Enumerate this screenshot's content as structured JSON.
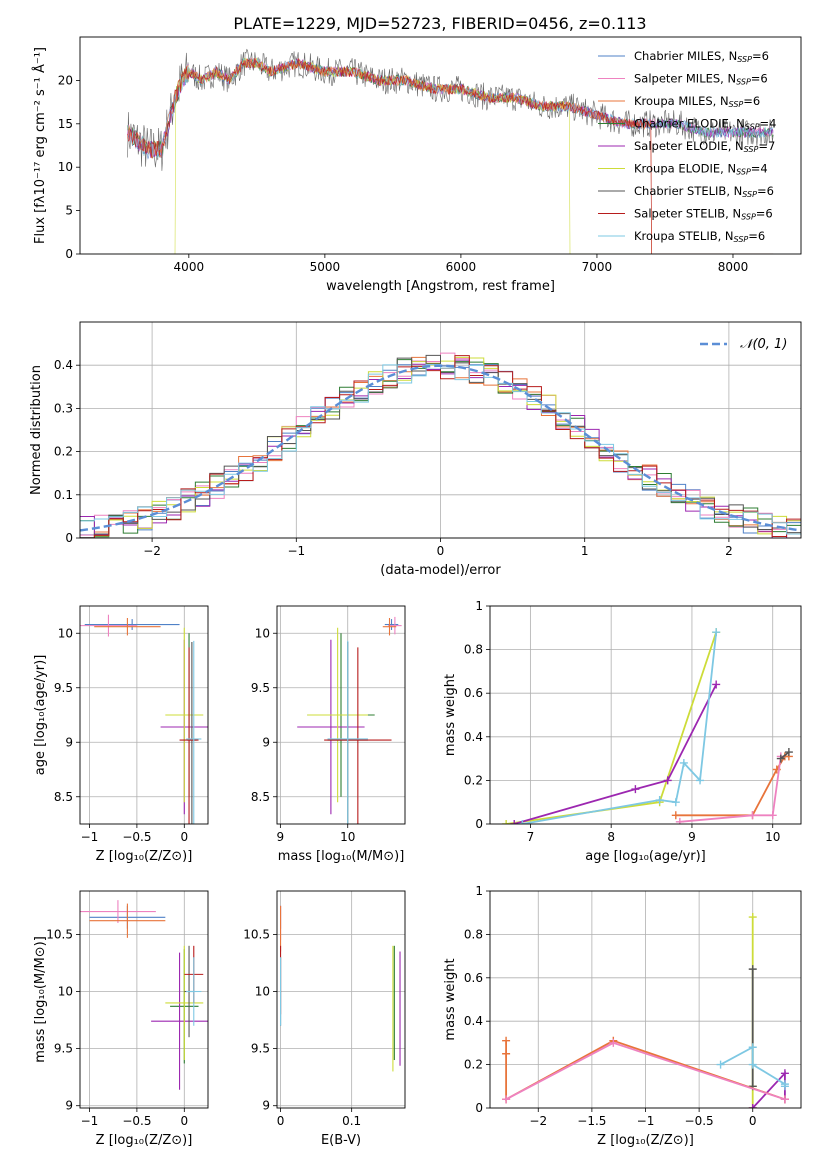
{
  "title": "PLATE=1229, MJD=52723, FIBERID=0456, z=0.113",
  "models": [
    {
      "name": "Chabrier MILES",
      "nssp": "6",
      "color": "#4f81c7"
    },
    {
      "name": "Salpeter MILES",
      "nssp": "6",
      "color": "#ee82c0"
    },
    {
      "name": "Kroupa MILES",
      "nssp": "6",
      "color": "#e8743b"
    },
    {
      "name": "Chabrier ELODIE",
      "nssp": "4",
      "color": "#2e7d32"
    },
    {
      "name": "Salpeter ELODIE",
      "nssp": "7",
      "color": "#9c27b0"
    },
    {
      "name": "Kroupa ELODIE",
      "nssp": "4",
      "color": "#cddc39"
    },
    {
      "name": "Chabrier STELIB",
      "nssp": "6",
      "color": "#555555"
    },
    {
      "name": "Salpeter STELIB",
      "nssp": "6",
      "color": "#b71c1c"
    },
    {
      "name": "Kroupa STELIB",
      "nssp": "6",
      "color": "#7ec8e3"
    }
  ],
  "nssp_prefix": "N",
  "nssp_sub": "SSP",
  "chart_data": [
    {
      "id": "spectrum",
      "type": "line",
      "xlabel": "wavelength [Angstrom, rest frame]",
      "ylabel": "Flux [fλ10⁻¹⁷ erg cm⁻² s⁻¹ Å⁻¹]",
      "xlim": [
        3200,
        8500
      ],
      "ylim": [
        0,
        25
      ],
      "xticks": [
        4000,
        5000,
        6000,
        7000,
        8000
      ],
      "yticks": [
        0,
        5,
        10,
        15,
        20
      ],
      "spectrum_x": [
        3550,
        3700,
        3800,
        3900,
        3950,
        4000,
        4100,
        4200,
        4300,
        4400,
        4500,
        4600,
        4800,
        5000,
        5200,
        5400,
        5600,
        5800,
        6000,
        6200,
        6400,
        6600,
        6800,
        7000,
        7200,
        7400,
        7600,
        7800,
        8000,
        8300
      ],
      "spectrum_y": [
        14,
        12,
        12,
        18,
        20,
        21,
        20,
        21,
        20,
        22,
        22,
        21,
        22,
        21,
        21,
        20,
        20,
        19,
        19,
        18,
        18,
        17,
        17,
        16,
        15,
        15,
        15,
        14,
        14,
        14
      ],
      "dropouts": [
        {
          "series": "Kroupa ELODIE",
          "x_from": 3900,
          "x_to": 6800
        },
        {
          "series": "Salpeter STELIB",
          "x_from": 3500,
          "x_to": 7400
        },
        {
          "series": "Kroupa MILES",
          "x_from": 3500,
          "x_to": 7400
        }
      ]
    },
    {
      "id": "residuals",
      "type": "line",
      "xlabel": "(data-model)/error",
      "ylabel": "Normed distribution",
      "xlim": [
        -2.5,
        2.5
      ],
      "ylim": [
        0,
        0.5
      ],
      "xticks": [
        -2,
        -1,
        0,
        1,
        2
      ],
      "yticks": [
        0.0,
        0.1,
        0.2,
        0.3,
        0.4
      ],
      "legend": "𝒩(0, 1)",
      "legend_position": "top-right",
      "reference_curve": "normal(0,1)",
      "bins": 50
    },
    {
      "id": "age-vs-Z",
      "type": "scatter",
      "xlabel": "Z [log₁₀(Z/Z⊙)]",
      "ylabel": "age  [log₁₀(age/yr)]",
      "xlim": [
        -1.1,
        0.25
      ],
      "ylim": [
        8.25,
        10.25
      ],
      "xticks": [
        -1.0,
        -0.5,
        0.0
      ],
      "yticks": [
        8.5,
        9.0,
        9.5,
        10.0
      ],
      "points": [
        {
          "series": "Chabrier MILES",
          "x": -0.55,
          "y": 10.08,
          "xerr": 0.5,
          "yerr": 0.05
        },
        {
          "series": "Salpeter MILES",
          "x": -0.8,
          "y": 10.07,
          "xerr": 0.3,
          "yerr": 0.1
        },
        {
          "series": "Kroupa MILES",
          "x": -0.6,
          "y": 10.06,
          "xerr": 0.35,
          "yerr": 0.08
        },
        {
          "series": "Chabrier ELODIE",
          "x": 0.05,
          "y": 9.25,
          "xerr": 0.12,
          "yerr": 0.75
        },
        {
          "series": "Salpeter ELODIE",
          "x": 0.0,
          "y": 9.14,
          "xerr": 0.25,
          "yerr": 0.8
        },
        {
          "series": "Kroupa ELODIE",
          "x": 0.0,
          "y": 9.25,
          "xerr": 0.2,
          "yerr": 0.8
        },
        {
          "series": "Chabrier STELIB",
          "x": 0.08,
          "y": 9.02,
          "xerr": 0.05,
          "yerr": 0.9
        },
        {
          "series": "Salpeter STELIB",
          "x": 0.05,
          "y": 9.02,
          "xerr": 0.1,
          "yerr": 0.85
        },
        {
          "series": "Kroupa STELIB",
          "x": 0.1,
          "y": 9.03,
          "xerr": 0.08,
          "yerr": 0.9
        }
      ]
    },
    {
      "id": "age-vs-mass",
      "type": "scatter",
      "xlabel": "mass [log₁₀(M/M⊙)]",
      "ylabel": "",
      "xlim": [
        8.95,
        10.85
      ],
      "ylim": [
        8.25,
        10.25
      ],
      "xticks": [
        9,
        10
      ],
      "yticks": [
        8.5,
        9.0,
        9.5,
        10.0
      ],
      "points": [
        {
          "series": "Chabrier MILES",
          "x": 10.65,
          "y": 10.08,
          "xerr": 0.1,
          "yerr": 0.05
        },
        {
          "series": "Salpeter MILES",
          "x": 10.7,
          "y": 10.07,
          "xerr": 0.1,
          "yerr": 0.08
        },
        {
          "series": "Kroupa MILES",
          "x": 10.62,
          "y": 10.06,
          "xerr": 0.1,
          "yerr": 0.08
        },
        {
          "series": "Chabrier ELODIE",
          "x": 9.9,
          "y": 9.25,
          "xerr": 0.5,
          "yerr": 0.75
        },
        {
          "series": "Salpeter ELODIE",
          "x": 9.75,
          "y": 9.14,
          "xerr": 0.5,
          "yerr": 0.8
        },
        {
          "series": "Kroupa ELODIE",
          "x": 9.85,
          "y": 9.25,
          "xerr": 0.45,
          "yerr": 0.8
        },
        {
          "series": "Chabrier STELIB",
          "x": 10.0,
          "y": 9.02,
          "xerr": 0.3,
          "yerr": 0.9
        },
        {
          "series": "Salpeter STELIB",
          "x": 10.15,
          "y": 9.02,
          "xerr": 0.5,
          "yerr": 0.85
        },
        {
          "series": "Kroupa STELIB",
          "x": 10.0,
          "y": 9.03,
          "xerr": 0.3,
          "yerr": 0.9
        }
      ]
    },
    {
      "id": "weight-vs-age",
      "type": "line",
      "xlabel": "age  [log₁₀(age/yr)]",
      "ylabel": "mass weight",
      "xlim": [
        6.5,
        10.35
      ],
      "ylim": [
        0,
        1
      ],
      "xticks": [
        7,
        8,
        9,
        10
      ],
      "yticks": [
        0.0,
        0.2,
        0.4,
        0.6,
        0.8,
        1.0
      ],
      "series": [
        {
          "name": "Kroupa ELODIE",
          "x": [
            6.7,
            8.6,
            9.3
          ],
          "y": [
            0.0,
            0.1,
            0.88
          ]
        },
        {
          "name": "Salpeter ELODIE",
          "x": [
            6.8,
            8.3,
            8.7,
            9.3
          ],
          "y": [
            0.0,
            0.16,
            0.2,
            0.64
          ]
        },
        {
          "name": "Kroupa STELIB",
          "x": [
            6.9,
            8.6,
            8.8,
            8.9,
            9.1,
            9.3
          ],
          "y": [
            0.0,
            0.11,
            0.1,
            0.28,
            0.2,
            0.88
          ]
        },
        {
          "name": "Kroupa MILES",
          "x": [
            8.8,
            9.75,
            10.05,
            10.15,
            10.2
          ],
          "y": [
            0.04,
            0.04,
            0.25,
            0.31,
            0.31
          ]
        },
        {
          "name": "Salpeter MILES",
          "x": [
            8.85,
            9.75,
            10.0,
            10.1
          ],
          "y": [
            0.01,
            0.04,
            0.04,
            0.31
          ]
        },
        {
          "name": "Chabrier STELIB",
          "x": [
            10.1,
            10.2
          ],
          "y": [
            0.3,
            0.33
          ]
        }
      ]
    },
    {
      "id": "mass-vs-Z",
      "type": "scatter",
      "xlabel": "Z [log₁₀(Z/Z⊙)]",
      "ylabel": "mass [log₁₀(M/M⊙)]",
      "xlim": [
        -1.1,
        0.25
      ],
      "ylim": [
        8.98,
        10.88
      ],
      "xticks": [
        -1.0,
        -0.5,
        0.0
      ],
      "yticks": [
        9.0,
        9.5,
        10.0,
        10.5
      ],
      "points": [
        {
          "series": "Chabrier MILES",
          "x": -0.6,
          "y": 10.65,
          "xerr": 0.4,
          "yerr": 0.1
        },
        {
          "series": "Salpeter MILES",
          "x": -0.7,
          "y": 10.7,
          "xerr": 0.4,
          "yerr": 0.1
        },
        {
          "series": "Kroupa MILES",
          "x": -0.6,
          "y": 10.62,
          "xerr": 0.4,
          "yerr": 0.15
        },
        {
          "series": "Chabrier ELODIE",
          "x": 0.0,
          "y": 9.87,
          "xerr": 0.15,
          "yerr": 0.5
        },
        {
          "series": "Salpeter ELODIE",
          "x": -0.05,
          "y": 9.74,
          "xerr": 0.3,
          "yerr": 0.6
        },
        {
          "series": "Kroupa ELODIE",
          "x": 0.0,
          "y": 9.9,
          "xerr": 0.2,
          "yerr": 0.5
        },
        {
          "series": "Chabrier STELIB",
          "x": 0.05,
          "y": 10.0,
          "xerr": 0.05,
          "yerr": 0.4
        },
        {
          "series": "Salpeter STELIB",
          "x": 0.1,
          "y": 10.15,
          "xerr": 0.1,
          "yerr": 0.25
        },
        {
          "series": "Kroupa STELIB",
          "x": 0.1,
          "y": 10.0,
          "xerr": 0.08,
          "yerr": 0.3
        }
      ]
    },
    {
      "id": "mass-vs-EBV",
      "type": "scatter",
      "xlabel": "E(B-V)",
      "ylabel": "",
      "xlim": [
        -0.005,
        0.175
      ],
      "ylim": [
        8.98,
        10.88
      ],
      "xticks": [
        0.0,
        0.1
      ],
      "yticks": [
        9.0,
        9.5,
        10.0,
        10.5
      ],
      "points": [
        {
          "series": "Chabrier MILES",
          "x": 0.0,
          "y": 10.65,
          "xerr": 0,
          "yerr": 0.1
        },
        {
          "series": "Salpeter MILES",
          "x": 0.0,
          "y": 10.6,
          "xerr": 0,
          "yerr": 0.15
        },
        {
          "series": "Kroupa MILES",
          "x": 0.0,
          "y": 10.55,
          "xerr": 0,
          "yerr": 0.2
        },
        {
          "series": "Chabrier ELODIE",
          "x": 0.16,
          "y": 9.9,
          "xerr": 0,
          "yerr": 0.5
        },
        {
          "series": "Salpeter ELODIE",
          "x": 0.168,
          "y": 9.85,
          "xerr": 0,
          "yerr": 0.5
        },
        {
          "series": "Kroupa ELODIE",
          "x": 0.158,
          "y": 9.85,
          "xerr": 0,
          "yerr": 0.55
        },
        {
          "series": "Chabrier STELIB",
          "x": 0.0,
          "y": 10.0,
          "xerr": 0,
          "yerr": 0.3
        },
        {
          "series": "Salpeter STELIB",
          "x": 0.0,
          "y": 10.1,
          "xerr": 0,
          "yerr": 0.3
        },
        {
          "series": "Kroupa STELIB",
          "x": 0.0,
          "y": 10.0,
          "xerr": 0,
          "yerr": 0.3
        }
      ]
    },
    {
      "id": "weight-vs-Z",
      "type": "line",
      "xlabel": "Z [log₁₀(Z/Z⊙)]",
      "ylabel": "mass weight",
      "xlim": [
        -2.45,
        0.45
      ],
      "ylim": [
        0,
        1
      ],
      "xticks": [
        -2.0,
        -1.5,
        -1.0,
        -0.5,
        0.0
      ],
      "yticks": [
        0.0,
        0.2,
        0.4,
        0.6,
        0.8,
        1.0
      ],
      "series": [
        {
          "name": "Kroupa ELODIE",
          "x": [
            0.0,
            0.0,
            0.0
          ],
          "y": [
            0.0,
            0.1,
            0.88
          ]
        },
        {
          "name": "Chabrier STELIB",
          "x": [
            0.0,
            0.0
          ],
          "y": [
            0.1,
            0.64
          ]
        },
        {
          "name": "Salpeter ELODIE",
          "x": [
            0.0,
            0.3,
            0.3
          ],
          "y": [
            0.0,
            0.16,
            0.04
          ]
        },
        {
          "name": "Kroupa STELIB",
          "x": [
            -0.3,
            0.0,
            0.0,
            0.3,
            0.3
          ],
          "y": [
            0.2,
            0.28,
            0.2,
            0.11,
            0.1
          ]
        },
        {
          "name": "Kroupa MILES",
          "x": [
            -2.3,
            -2.3,
            -2.3,
            -1.3,
            0.3
          ],
          "y": [
            0.31,
            0.25,
            0.04,
            0.31,
            0.04
          ]
        },
        {
          "name": "Salpeter MILES",
          "x": [
            -2.3,
            -1.3,
            0.3
          ],
          "y": [
            0.04,
            0.3,
            0.04
          ]
        }
      ]
    }
  ]
}
